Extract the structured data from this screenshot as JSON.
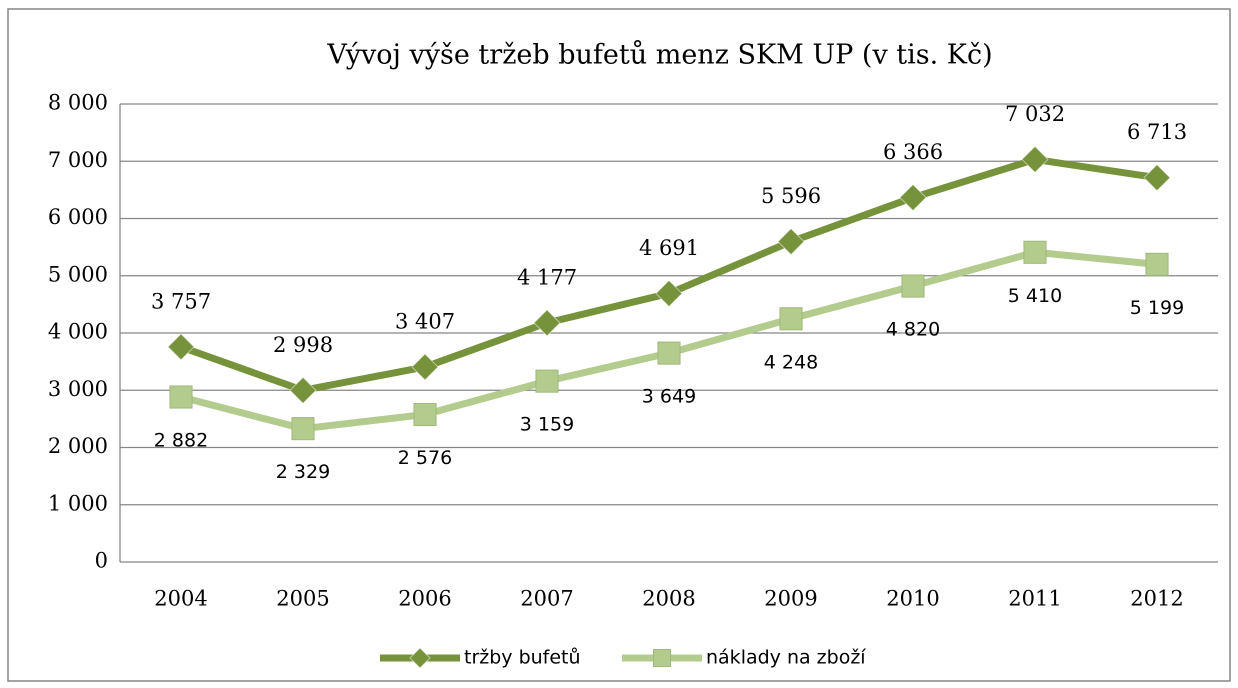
{
  "chart_data": {
    "type": "line",
    "title": "Vývoj výše tržeb bufetů menz SKM UP (v tis. Kč)",
    "categories": [
      "2004",
      "2005",
      "2006",
      "2007",
      "2008",
      "2009",
      "2010",
      "2011",
      "2012"
    ],
    "series": [
      {
        "name": "tržby bufetů",
        "color": "#76933c",
        "marker": "diamond",
        "values": [
          3757,
          2998,
          3407,
          4177,
          4691,
          5596,
          6366,
          7032,
          6713
        ],
        "value_labels": [
          "3 757",
          "2 998",
          "3 407",
          "4 177",
          "4 691",
          "5 596",
          "6 366",
          "7 032",
          "6 713"
        ]
      },
      {
        "name": "náklady na zboží",
        "color": "#b3cb8c",
        "marker": "square",
        "values": [
          2882,
          2329,
          2576,
          3159,
          3649,
          4248,
          4820,
          5410,
          5199
        ],
        "value_labels": [
          "2 882",
          "2 329",
          "2 576",
          "3 159",
          "3 649",
          "4 248",
          "4 820",
          "5 410",
          "5 199"
        ]
      }
    ],
    "ylim": [
      0,
      8000
    ],
    "yticks": [
      0,
      {
        "value": 1000,
        "label": "1 000"
      },
      {
        "value": 2000,
        "label": "2 000"
      },
      {
        "value": 3000,
        "label": "3 000"
      },
      {
        "value": 4000,
        "label": "4 000"
      },
      {
        "value": 5000,
        "label": "5 000"
      },
      {
        "value": 6000,
        "label": "6 000"
      },
      {
        "value": 7000,
        "label": "7 000"
      },
      {
        "value": 8000,
        "label": "8 000"
      }
    ],
    "grid": true,
    "legend": "bottom"
  }
}
